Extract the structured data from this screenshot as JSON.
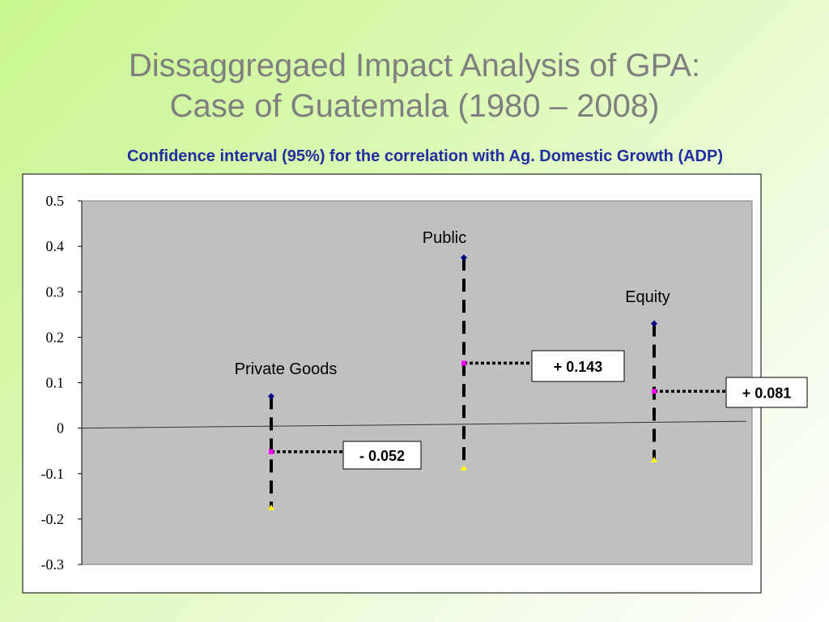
{
  "slide": {
    "title_line1": "Dissaggregaed Impact Analysis of GPA:",
    "title_line2": "Case of Guatemala (1980 – 2008)",
    "subtitle": "Confidence interval (95%) for the correlation with Ag. Domestic Growth (ADP)"
  },
  "colors": {
    "plot_background": "#c0c0c0",
    "upper_marker": "#000080",
    "mid_marker": "#ff00ff",
    "lower_marker": "#ffff00",
    "subtitle": "#1f2f9f",
    "title": "#7f7f7f"
  },
  "chart_data": {
    "type": "scatter",
    "ylim": [
      -0.3,
      0.5
    ],
    "y_ticks": [
      "0.5",
      "0.4",
      "0.3",
      "0.2",
      "0.1",
      "0",
      "-0.1",
      "-0.2",
      "-0.3"
    ],
    "grid": false,
    "categories": [
      "Private Goods",
      "Public",
      "Equity"
    ],
    "intervals": [
      {
        "name": "Private Goods",
        "upper": 0.07,
        "estimate": -0.052,
        "lower": -0.175,
        "label": "- 0.052"
      },
      {
        "name": "Public",
        "upper": 0.375,
        "estimate": 0.143,
        "lower": -0.088,
        "label": "+ 0.143"
      },
      {
        "name": "Equity",
        "upper": 0.23,
        "estimate": 0.081,
        "lower": -0.07,
        "label": "+ 0.081"
      }
    ],
    "reference_line": {
      "y_start": 0.0,
      "y_end": 0.015
    }
  }
}
